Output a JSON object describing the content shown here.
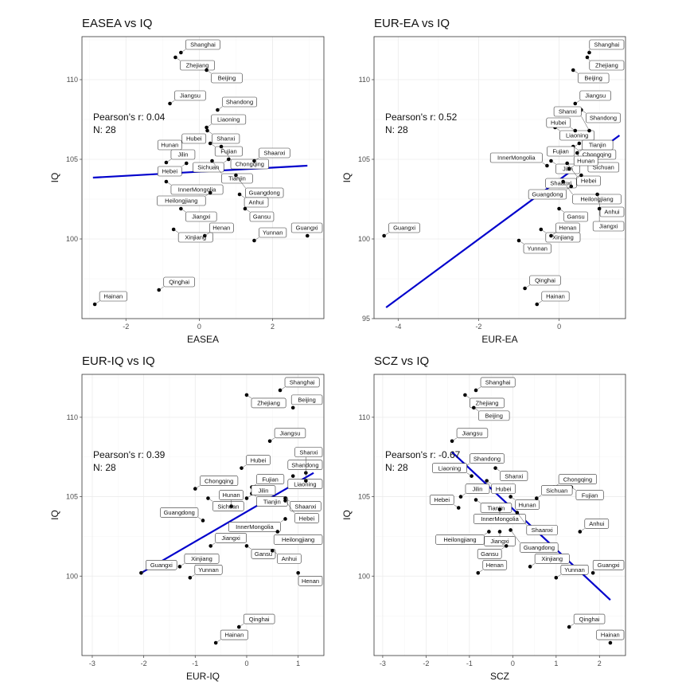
{
  "chart_data": [
    {
      "type": "scatter",
      "title": "EASEA vs IQ",
      "xlabel": "EASEA",
      "ylabel": "IQ",
      "xlim": [
        -3.2,
        3.4
      ],
      "ylim": [
        95,
        112.7
      ],
      "xticks": [
        -2,
        0,
        2
      ],
      "yticks": [
        100,
        105,
        110
      ],
      "stats": {
        "r": "Pearson's r: 0.04",
        "n": "N: 28"
      },
      "fit": {
        "x": [
          -2.9,
          2.95
        ],
        "y": [
          103.85,
          104.6
        ]
      },
      "points": [
        {
          "label": "Shanghai",
          "x": -0.5,
          "y": 111.7
        },
        {
          "label": "Zhejiang",
          "x": -0.65,
          "y": 111.4
        },
        {
          "label": "Beijing",
          "x": 0.2,
          "y": 110.6
        },
        {
          "label": "Jiangsu",
          "x": -0.8,
          "y": 108.5
        },
        {
          "label": "Shandong",
          "x": 0.5,
          "y": 108.1
        },
        {
          "label": "Liaoning",
          "x": 0.2,
          "y": 107.0
        },
        {
          "label": "Shanxi",
          "x": 0.22,
          "y": 106.8
        },
        {
          "label": "Hubei",
          "x": -0.6,
          "y": 105.8
        },
        {
          "label": "Fujian",
          "x": 0.3,
          "y": 106.0
        },
        {
          "label": "Chongqing",
          "x": 0.6,
          "y": 105.8
        },
        {
          "label": "Hunan",
          "x": -0.35,
          "y": 105.4
        },
        {
          "label": "Sichuan",
          "x": 0.8,
          "y": 105.0
        },
        {
          "label": "Shaanxi",
          "x": 1.5,
          "y": 104.9
        },
        {
          "label": "Tianjin",
          "x": 0.35,
          "y": 104.9
        },
        {
          "label": "Jilin",
          "x": -0.9,
          "y": 104.8
        },
        {
          "label": "Hebei",
          "x": -0.35,
          "y": 104.75
        },
        {
          "label": "Guangdong",
          "x": 1.0,
          "y": 104.0
        },
        {
          "label": "InnerMongolia",
          "x": -0.9,
          "y": 103.6
        },
        {
          "label": "Heilongjiang",
          "x": 0.3,
          "y": 102.9
        },
        {
          "label": "Anhui",
          "x": 1.1,
          "y": 102.8
        },
        {
          "label": "Jiangxi",
          "x": -0.5,
          "y": 101.9
        },
        {
          "label": "Gansu",
          "x": 1.25,
          "y": 101.9
        },
        {
          "label": "Xinjiang",
          "x": -0.7,
          "y": 100.6
        },
        {
          "label": "Henan",
          "x": 0.15,
          "y": 100.2
        },
        {
          "label": "Yunnan",
          "x": 1.5,
          "y": 99.9
        },
        {
          "label": "Guangxi",
          "x": 2.95,
          "y": 100.2
        },
        {
          "label": "Qinghai",
          "x": -1.1,
          "y": 96.8
        },
        {
          "label": "Hainan",
          "x": -2.85,
          "y": 95.9
        }
      ]
    },
    {
      "type": "scatter",
      "title": "EUR-EA vs IQ",
      "xlabel": "EUR-EA",
      "ylabel": "IQ",
      "xlim": [
        -4.6,
        1.65
      ],
      "ylim": [
        95,
        112.7
      ],
      "xticks": [
        -4,
        -2,
        0
      ],
      "yticks": [
        95,
        100,
        105,
        110
      ],
      "stats": {
        "r": "Pearson's r: 0.52",
        "n": "N: 28"
      },
      "fit": {
        "x": [
          -4.3,
          1.5
        ],
        "y": [
          95.7,
          106.5
        ]
      },
      "points": [
        {
          "label": "Shanghai",
          "x": 0.75,
          "y": 111.7
        },
        {
          "label": "Zhejiang",
          "x": 0.7,
          "y": 111.4
        },
        {
          "label": "Beijing",
          "x": 0.35,
          "y": 110.6
        },
        {
          "label": "Jiangsu",
          "x": 0.4,
          "y": 108.5
        },
        {
          "label": "Shandong",
          "x": 0.55,
          "y": 108.1
        },
        {
          "label": "Liaoning",
          "x": -0.1,
          "y": 107.0
        },
        {
          "label": "Hubei",
          "x": 0.4,
          "y": 106.8
        },
        {
          "label": "Shanxi",
          "x": 0.75,
          "y": 106.8
        },
        {
          "label": "Chongqing",
          "x": 0.35,
          "y": 105.8
        },
        {
          "label": "Fujian",
          "x": 0.5,
          "y": 106.0
        },
        {
          "label": "Sichuan",
          "x": 0.6,
          "y": 105.0
        },
        {
          "label": "Jilin",
          "x": -0.2,
          "y": 104.9
        },
        {
          "label": "InnerMongolia",
          "x": -0.3,
          "y": 104.6
        },
        {
          "label": "Hebei",
          "x": 0.2,
          "y": 104.75
        },
        {
          "label": "Hunan",
          "x": 0.25,
          "y": 104.4
        },
        {
          "label": "Tianjin",
          "x": 0.45,
          "y": 105.4
        },
        {
          "label": "Shaanxi",
          "x": 0.55,
          "y": 104.0
        },
        {
          "label": "Heilongjiang",
          "x": 0.1,
          "y": 103.6
        },
        {
          "label": "Guangdong",
          "x": 0.3,
          "y": 103.3
        },
        {
          "label": "Anhui",
          "x": 0.95,
          "y": 102.8
        },
        {
          "label": "Gansu",
          "x": 0.0,
          "y": 101.9
        },
        {
          "label": "Jiangxi",
          "x": 1.0,
          "y": 101.9
        },
        {
          "label": "Xinjiang",
          "x": -0.45,
          "y": 100.6
        },
        {
          "label": "Henan",
          "x": -0.2,
          "y": 100.2
        },
        {
          "label": "Yunnan",
          "x": -1.0,
          "y": 99.9
        },
        {
          "label": "Guangxi",
          "x": -4.35,
          "y": 100.2
        },
        {
          "label": "Qinghai",
          "x": -0.85,
          "y": 96.9
        },
        {
          "label": "Hainan",
          "x": -0.55,
          "y": 95.9
        }
      ]
    },
    {
      "type": "scatter",
      "title": "EUR-IQ vs IQ",
      "xlabel": "EUR-IQ",
      "ylabel": "IQ",
      "xlim": [
        -3.2,
        1.5
      ],
      "ylim": [
        95,
        112.7
      ],
      "xticks": [
        -3,
        -2,
        -1,
        0,
        1
      ],
      "yticks": [
        100,
        105,
        110
      ],
      "stats": {
        "r": "Pearson's r: 0.39",
        "n": "N: 28"
      },
      "fit": {
        "x": [
          -2.05,
          1.3
        ],
        "y": [
          100.2,
          106.5
        ]
      },
      "points": [
        {
          "label": "Shanghai",
          "x": 0.65,
          "y": 111.7
        },
        {
          "label": "Zhejiang",
          "x": 0.0,
          "y": 111.4
        },
        {
          "label": "Beijing",
          "x": 0.9,
          "y": 110.6
        },
        {
          "label": "Jiangsu",
          "x": 0.45,
          "y": 108.5
        },
        {
          "label": "Shandong",
          "x": 1.15,
          "y": 106.5
        },
        {
          "label": "Hubei",
          "x": -0.1,
          "y": 106.8
        },
        {
          "label": "Fujian",
          "x": 0.1,
          "y": 105.6
        },
        {
          "label": "Liaoning",
          "x": 0.9,
          "y": 106.3
        },
        {
          "label": "Shanxi",
          "x": 1.15,
          "y": 106.0
        },
        {
          "label": "Chongqing",
          "x": -1.0,
          "y": 105.5
        },
        {
          "label": "Sichuan",
          "x": -0.75,
          "y": 104.9
        },
        {
          "label": "Tianjin",
          "x": 0.1,
          "y": 105.2
        },
        {
          "label": "Shaanxi",
          "x": 0.75,
          "y": 104.9
        },
        {
          "label": "Jilin",
          "x": 0.0,
          "y": 104.9
        },
        {
          "label": "Hunan",
          "x": -0.3,
          "y": 104.4
        },
        {
          "label": "Hebei",
          "x": 0.75,
          "y": 104.75
        },
        {
          "label": "InnerMongolia",
          "x": 0.75,
          "y": 103.6
        },
        {
          "label": "Guangdong",
          "x": -0.85,
          "y": 103.5
        },
        {
          "label": "Heilongjiang",
          "x": 0.6,
          "y": 102.8
        },
        {
          "label": "Jiangxi",
          "x": -0.7,
          "y": 101.9
        },
        {
          "label": "Gansu",
          "x": 0.0,
          "y": 101.9
        },
        {
          "label": "Anhui",
          "x": 0.5,
          "y": 101.6
        },
        {
          "label": "Guangxi",
          "x": -2.05,
          "y": 100.2
        },
        {
          "label": "Xinjiang",
          "x": -1.3,
          "y": 100.6
        },
        {
          "label": "Yunnan",
          "x": -1.1,
          "y": 99.9
        },
        {
          "label": "Henan",
          "x": 1.0,
          "y": 100.2
        },
        {
          "label": "Qinghai",
          "x": -0.15,
          "y": 96.8
        },
        {
          "label": "Hainan",
          "x": -0.6,
          "y": 95.8
        }
      ]
    },
    {
      "type": "scatter",
      "title": "SCZ vs IQ",
      "xlabel": "SCZ",
      "ylabel": "IQ",
      "xlim": [
        -3.2,
        2.6
      ],
      "ylim": [
        95,
        112.7
      ],
      "xticks": [
        -3,
        -2,
        -1,
        0,
        1,
        2
      ],
      "yticks": [
        100,
        105,
        110
      ],
      "stats": {
        "r": "Pearson's r: -0.67",
        "n": "N: 28"
      },
      "fit": {
        "x": [
          -1.4,
          2.25
        ],
        "y": [
          107.8,
          98.5
        ]
      },
      "points": [
        {
          "label": "Shanghai",
          "x": -0.85,
          "y": 111.7
        },
        {
          "label": "Zhejiang",
          "x": -1.1,
          "y": 111.4
        },
        {
          "label": "Beijing",
          "x": -0.9,
          "y": 110.6
        },
        {
          "label": "Jiangsu",
          "x": -1.4,
          "y": 108.5
        },
        {
          "label": "Shandong",
          "x": -1.1,
          "y": 106.9
        },
        {
          "label": "Shanxi",
          "x": -0.4,
          "y": 106.8
        },
        {
          "label": "Liaoning",
          "x": -0.95,
          "y": 106.3
        },
        {
          "label": "Hubei",
          "x": -0.6,
          "y": 106.0
        },
        {
          "label": "Chongqing",
          "x": 0.95,
          "y": 105.6
        },
        {
          "label": "Fujian",
          "x": 1.35,
          "y": 105.6
        },
        {
          "label": "Jilin",
          "x": -1.2,
          "y": 105.0
        },
        {
          "label": "Hunan",
          "x": -0.05,
          "y": 105.0
        },
        {
          "label": "Sichuan",
          "x": 0.55,
          "y": 104.9
        },
        {
          "label": "Tianjin",
          "x": -0.85,
          "y": 104.8
        },
        {
          "label": "Hebei",
          "x": -1.25,
          "y": 104.3
        },
        {
          "label": "InnerMongolia",
          "x": -0.3,
          "y": 104.2
        },
        {
          "label": "Shaanxi",
          "x": 0.1,
          "y": 104.0
        },
        {
          "label": "Heilongjiang",
          "x": -0.55,
          "y": 102.8
        },
        {
          "label": "Jiangxi",
          "x": -0.3,
          "y": 102.8
        },
        {
          "label": "Guangdong",
          "x": -0.05,
          "y": 102.9
        },
        {
          "label": "Anhui",
          "x": 1.55,
          "y": 102.8
        },
        {
          "label": "Gansu",
          "x": -0.15,
          "y": 101.9
        },
        {
          "label": "Henan",
          "x": -0.8,
          "y": 100.2
        },
        {
          "label": "Xinjiang",
          "x": 0.4,
          "y": 100.6
        },
        {
          "label": "Yunnan",
          "x": 1.0,
          "y": 99.9
        },
        {
          "label": "Guangxi",
          "x": 1.85,
          "y": 100.2
        },
        {
          "label": "Qinghai",
          "x": 1.3,
          "y": 96.8
        },
        {
          "label": "Hainan",
          "x": 2.25,
          "y": 95.8
        }
      ]
    }
  ]
}
